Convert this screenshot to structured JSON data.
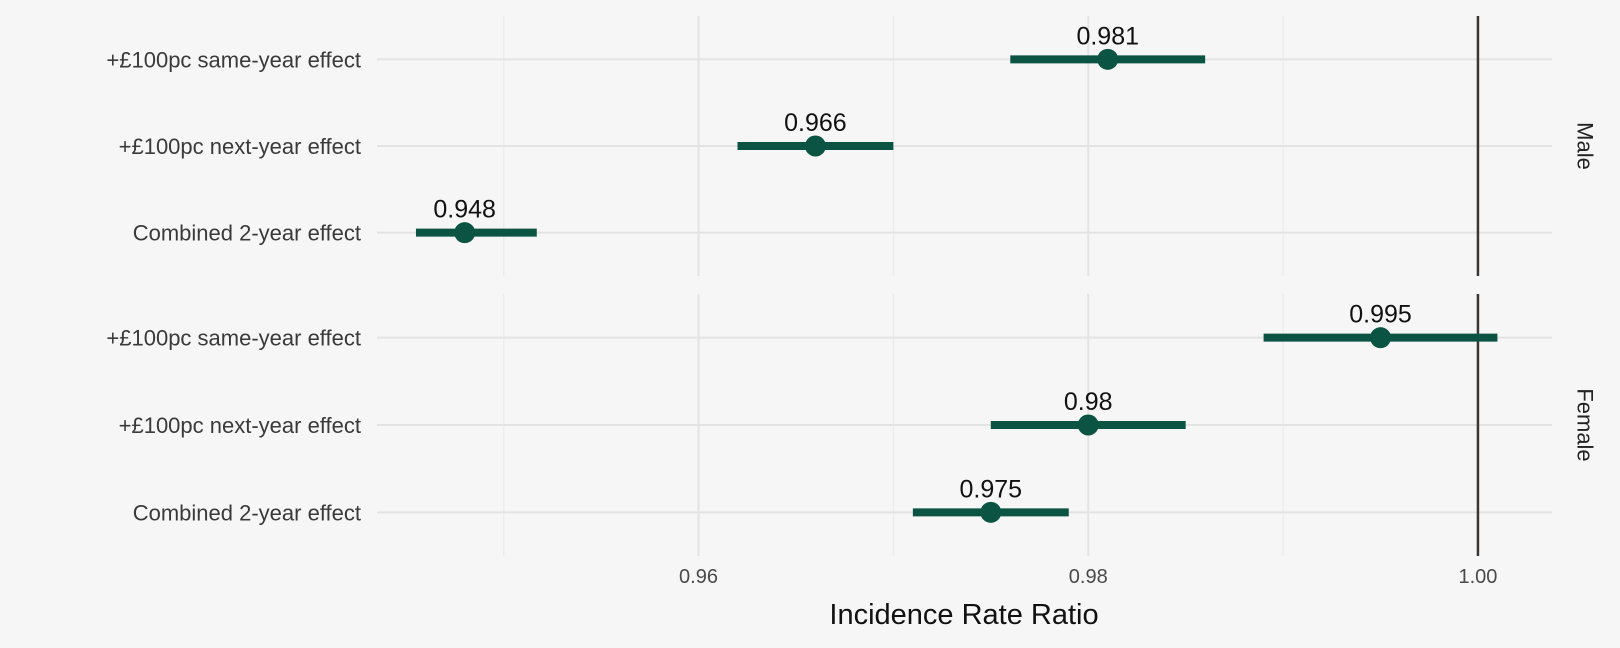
{
  "chart_data": {
    "type": "forest",
    "xlabel": "Incidence Rate Ratio",
    "ylabel": "",
    "xlim": [
      0.9435,
      1.0038
    ],
    "xticks": [
      {
        "value": 0.96,
        "label": "0.96"
      },
      {
        "value": 0.98,
        "label": "0.98"
      },
      {
        "value": 1.0,
        "label": "1.00"
      }
    ],
    "reference_value": 1.0,
    "grid": true,
    "categories": [
      "+£100pc same-year effect",
      "+£100pc next-year effect",
      "Combined 2-year effect"
    ],
    "panels": [
      {
        "name": "Male",
        "points": [
          {
            "label": "+£100pc same-year effect",
            "estimate": 0.981,
            "estimate_label": "0.981",
            "lower": 0.976,
            "upper": 0.986
          },
          {
            "label": "+£100pc next-year effect",
            "estimate": 0.966,
            "estimate_label": "0.966",
            "lower": 0.962,
            "upper": 0.97
          },
          {
            "label": "Combined 2-year effect",
            "estimate": 0.948,
            "estimate_label": "0.948",
            "lower": 0.9455,
            "upper": 0.9517
          }
        ]
      },
      {
        "name": "Female",
        "points": [
          {
            "label": "+£100pc same-year effect",
            "estimate": 0.995,
            "estimate_label": "0.995",
            "lower": 0.989,
            "upper": 1.001
          },
          {
            "label": "+£100pc next-year effect",
            "estimate": 0.98,
            "estimate_label": "0.98",
            "lower": 0.975,
            "upper": 0.985
          },
          {
            "label": "Combined 2-year effect",
            "estimate": 0.975,
            "estimate_label": "0.975",
            "lower": 0.971,
            "upper": 0.979
          }
        ]
      }
    ],
    "colors": {
      "point": "#0b5443",
      "reference": "#3b3631",
      "background": "#f6f6f6"
    }
  }
}
